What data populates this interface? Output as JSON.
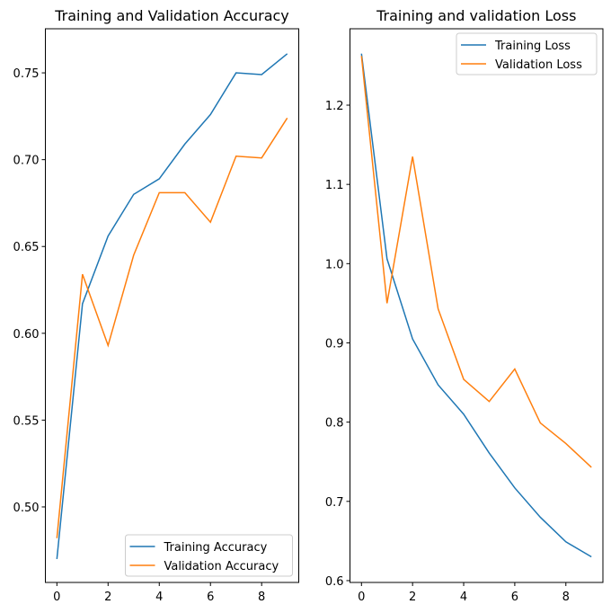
{
  "chart_data": [
    {
      "type": "line",
      "title": "Training and Validation Accuracy",
      "xlabel": "",
      "ylabel": "",
      "x": [
        0,
        1,
        2,
        3,
        4,
        5,
        6,
        7,
        8,
        9
      ],
      "xlim": [
        -0.45,
        9.45
      ],
      "ylim": [
        0.4565,
        0.7754
      ],
      "xticks": [
        0,
        2,
        4,
        6,
        8
      ],
      "yticks": [
        0.5,
        0.55,
        0.6,
        0.65,
        0.7,
        0.75
      ],
      "ytick_labels": [
        "0.50",
        "0.55",
        "0.60",
        "0.65",
        "0.70",
        "0.75"
      ],
      "grid": false,
      "legend": "lower right",
      "series": [
        {
          "name": "Training Accuracy",
          "color": "#1f77b4",
          "values": [
            0.47,
            0.617,
            0.656,
            0.68,
            0.689,
            0.709,
            0.726,
            0.75,
            0.749,
            0.761
          ]
        },
        {
          "name": "Validation Accuracy",
          "color": "#ff7f0e",
          "values": [
            0.482,
            0.634,
            0.593,
            0.645,
            0.681,
            0.681,
            0.664,
            0.702,
            0.701,
            0.724
          ]
        }
      ]
    },
    {
      "type": "line",
      "title": "Training and validation Loss",
      "xlabel": "",
      "ylabel": "",
      "x": [
        0,
        1,
        2,
        3,
        4,
        5,
        6,
        7,
        8,
        9
      ],
      "xlim": [
        -0.45,
        9.45
      ],
      "ylim": [
        0.5977,
        1.2964
      ],
      "xticks": [
        0,
        2,
        4,
        6,
        8
      ],
      "yticks": [
        0.6,
        0.7,
        0.8,
        0.9,
        1.0,
        1.1,
        1.2
      ],
      "ytick_labels": [
        "0.6",
        "0.7",
        "0.8",
        "0.9",
        "1.0",
        "1.1",
        "1.2"
      ],
      "grid": false,
      "legend": "upper right",
      "series": [
        {
          "name": "Training Loss",
          "color": "#1f77b4",
          "values": [
            1.265,
            1.006,
            0.905,
            0.847,
            0.81,
            0.761,
            0.717,
            0.68,
            0.649,
            0.63
          ]
        },
        {
          "name": "Validation Loss",
          "color": "#ff7f0e",
          "values": [
            1.262,
            0.95,
            1.135,
            0.943,
            0.854,
            0.826,
            0.867,
            0.799,
            0.773,
            0.743
          ]
        }
      ]
    }
  ]
}
